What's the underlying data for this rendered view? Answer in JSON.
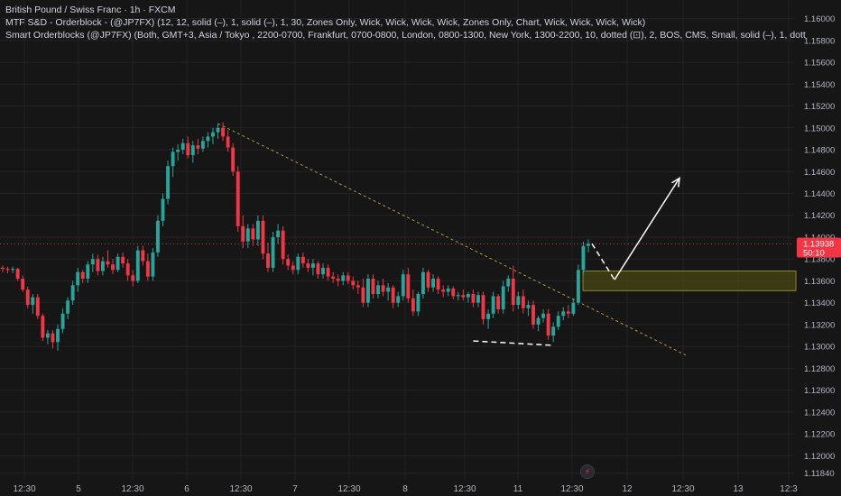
{
  "header": {
    "title": "British Pound / Swiss Franc · 1h · FXCM",
    "indicator_1": "MTF S&D - Orderblock - (@JP7FX) (12, 12, solid (–), 1, solid (–), 1, 30, Zones Only, Wick, Wick, Wick, Wick, Zones Only, Chart, Wick, Wick, Wick, Wick)",
    "indicator_2": "Smart Orderblocks (@JP7FX) (Both, GMT+3, Asia / Tokyo , 2200-0700, Frankfurt, 0700-0800, London, 0800-1300, New York, 1300-2200, 10, dotted (⊡), 2, BOS, CMS, Small, solid (–), 1, dott"
  },
  "price_label": {
    "value": "1.13938",
    "countdown": "50:10"
  },
  "alert_icon": "bolt-icon",
  "colors": {
    "background": "#161616",
    "up": "#26a69a",
    "down": "#f23645",
    "grid": "#232323",
    "text": "#b2b5be",
    "zone_fill": "#4a4a14",
    "zone_stroke": "#8a8a2a",
    "trendline": "#a89a40",
    "annotation": "#ffffff"
  },
  "chart_data": {
    "type": "candlestick",
    "title": "British Pound / Swiss Franc · 1h · FXCM",
    "y_axis": {
      "min": 1.1178,
      "max": 1.1617,
      "ticks": [
        "1.16000",
        "1.15800",
        "1.15600",
        "1.15400",
        "1.15200",
        "1.15000",
        "1.14800",
        "1.14600",
        "1.14400",
        "1.14200",
        "1.14000",
        "1.13800",
        "1.13600",
        "1.13400",
        "1.13200",
        "1.13000",
        "1.12800",
        "1.12600",
        "1.12400",
        "1.12200",
        "1.12000",
        "1.11840"
      ],
      "position": "right"
    },
    "x_axis": {
      "ticks": [
        "12:30",
        "5",
        "12:30",
        "6",
        "12:30",
        "7",
        "12:30",
        "8",
        "12:30",
        "11",
        "12:30",
        "12",
        "12:30",
        "13",
        "12:3"
      ]
    },
    "grid": true,
    "last_price": 1.13938,
    "candles": [
      [
        1.1372,
        1.1374,
        1.1368,
        1.1371
      ],
      [
        1.1371,
        1.1373,
        1.1367,
        1.137
      ],
      [
        1.137,
        1.1373,
        1.1367,
        1.1371
      ],
      [
        1.1371,
        1.1372,
        1.136,
        1.1362
      ],
      [
        1.1362,
        1.1365,
        1.135,
        1.1352
      ],
      [
        1.1352,
        1.1355,
        1.1335,
        1.1338
      ],
      [
        1.1338,
        1.1348,
        1.133,
        1.1345
      ],
      [
        1.1345,
        1.1348,
        1.1325,
        1.1328
      ],
      [
        1.1328,
        1.133,
        1.1305,
        1.1308
      ],
      [
        1.1308,
        1.1315,
        1.1302,
        1.1312
      ],
      [
        1.1312,
        1.1315,
        1.1298,
        1.1304
      ],
      [
        1.1304,
        1.132,
        1.1296,
        1.1316
      ],
      [
        1.1316,
        1.1335,
        1.1312,
        1.133
      ],
      [
        1.133,
        1.1345,
        1.1325,
        1.1342
      ],
      [
        1.1342,
        1.136,
        1.1338,
        1.1356
      ],
      [
        1.1356,
        1.1372,
        1.135,
        1.1368
      ],
      [
        1.1368,
        1.137,
        1.1358,
        1.1362
      ],
      [
        1.1362,
        1.1378,
        1.1358,
        1.1375
      ],
      [
        1.1375,
        1.1385,
        1.1368,
        1.138
      ],
      [
        1.138,
        1.1384,
        1.1365,
        1.1369
      ],
      [
        1.1369,
        1.1382,
        1.1365,
        1.1378
      ],
      [
        1.1378,
        1.1388,
        1.1372,
        1.1375
      ],
      [
        1.1375,
        1.138,
        1.1366,
        1.137
      ],
      [
        1.137,
        1.1385,
        1.1368,
        1.1382
      ],
      [
        1.1382,
        1.1386,
        1.1372,
        1.1376
      ],
      [
        1.1376,
        1.138,
        1.136,
        1.1365
      ],
      [
        1.1365,
        1.137,
        1.1355,
        1.136
      ],
      [
        1.136,
        1.1392,
        1.1358,
        1.1388
      ],
      [
        1.1388,
        1.1392,
        1.1374,
        1.1378
      ],
      [
        1.1378,
        1.1385,
        1.136,
        1.1364
      ],
      [
        1.1364,
        1.139,
        1.136,
        1.1386
      ],
      [
        1.1386,
        1.142,
        1.1382,
        1.1415
      ],
      [
        1.1415,
        1.144,
        1.141,
        1.1435
      ],
      [
        1.1435,
        1.147,
        1.143,
        1.1465
      ],
      [
        1.1465,
        1.1482,
        1.1455,
        1.1478
      ],
      [
        1.1478,
        1.1485,
        1.147,
        1.148
      ],
      [
        1.148,
        1.149,
        1.1476,
        1.1486
      ],
      [
        1.1486,
        1.1492,
        1.1472,
        1.1475
      ],
      [
        1.1475,
        1.1488,
        1.1468,
        1.1484
      ],
      [
        1.1484,
        1.149,
        1.1476,
        1.1481
      ],
      [
        1.1481,
        1.1492,
        1.1478,
        1.1488
      ],
      [
        1.1488,
        1.1496,
        1.1482,
        1.1492
      ],
      [
        1.1492,
        1.15,
        1.1485,
        1.1496
      ],
      [
        1.1496,
        1.1504,
        1.149,
        1.15
      ],
      [
        1.15,
        1.1505,
        1.1488,
        1.1492
      ],
      [
        1.1492,
        1.1498,
        1.1478,
        1.1482
      ],
      [
        1.1482,
        1.1486,
        1.1456,
        1.146
      ],
      [
        1.146,
        1.1465,
        1.1405,
        1.141
      ],
      [
        1.141,
        1.142,
        1.139,
        1.1396
      ],
      [
        1.1396,
        1.1412,
        1.139,
        1.1408
      ],
      [
        1.1408,
        1.1412,
        1.1392,
        1.1398
      ],
      [
        1.1398,
        1.142,
        1.1392,
        1.1415
      ],
      [
        1.1415,
        1.142,
        1.138,
        1.1385
      ],
      [
        1.1385,
        1.1395,
        1.1368,
        1.1372
      ],
      [
        1.1372,
        1.1405,
        1.1368,
        1.14
      ],
      [
        1.14,
        1.1412,
        1.1394,
        1.1406
      ],
      [
        1.1406,
        1.141,
        1.1375,
        1.138
      ],
      [
        1.138,
        1.1384,
        1.137,
        1.1374
      ],
      [
        1.1374,
        1.1378,
        1.1366,
        1.137
      ],
      [
        1.137,
        1.1385,
        1.1366,
        1.1382
      ],
      [
        1.1382,
        1.1386,
        1.1372,
        1.1376
      ],
      [
        1.1376,
        1.138,
        1.1368,
        1.1372
      ],
      [
        1.1372,
        1.138,
        1.1365,
        1.1376
      ],
      [
        1.1376,
        1.1378,
        1.1362,
        1.1366
      ],
      [
        1.1366,
        1.1376,
        1.1362,
        1.1372
      ],
      [
        1.1372,
        1.1375,
        1.136,
        1.1364
      ],
      [
        1.1364,
        1.1368,
        1.1358,
        1.1362
      ],
      [
        1.1362,
        1.1366,
        1.1355,
        1.136
      ],
      [
        1.136,
        1.1368,
        1.1356,
        1.1365
      ],
      [
        1.1365,
        1.1368,
        1.1357,
        1.136
      ],
      [
        1.136,
        1.1364,
        1.1352,
        1.1356
      ],
      [
        1.1356,
        1.136,
        1.1348,
        1.1354
      ],
      [
        1.1354,
        1.1362,
        1.1336,
        1.134
      ],
      [
        1.134,
        1.1366,
        1.1336,
        1.1362
      ],
      [
        1.1362,
        1.1366,
        1.1344,
        1.1348
      ],
      [
        1.1348,
        1.136,
        1.1344,
        1.1356
      ],
      [
        1.1356,
        1.1362,
        1.1346,
        1.135
      ],
      [
        1.135,
        1.1358,
        1.1342,
        1.1354
      ],
      [
        1.1354,
        1.1356,
        1.1335,
        1.134
      ],
      [
        1.134,
        1.135,
        1.1336,
        1.1346
      ],
      [
        1.1346,
        1.137,
        1.1342,
        1.1366
      ],
      [
        1.1366,
        1.1372,
        1.134,
        1.1344
      ],
      [
        1.1344,
        1.1352,
        1.1328,
        1.1332
      ],
      [
        1.1332,
        1.135,
        1.1328,
        1.1348
      ],
      [
        1.1348,
        1.1372,
        1.1344,
        1.1368
      ],
      [
        1.1368,
        1.137,
        1.135,
        1.1354
      ],
      [
        1.1354,
        1.1366,
        1.135,
        1.1362
      ],
      [
        1.1362,
        1.1364,
        1.1348,
        1.1352
      ],
      [
        1.1352,
        1.1356,
        1.1345,
        1.135
      ],
      [
        1.135,
        1.1356,
        1.1346,
        1.1353
      ],
      [
        1.1353,
        1.1355,
        1.1343,
        1.1346
      ],
      [
        1.1346,
        1.135,
        1.1342,
        1.1347
      ],
      [
        1.1347,
        1.1352,
        1.1342,
        1.1345
      ],
      [
        1.1345,
        1.135,
        1.134,
        1.1348
      ],
      [
        1.1348,
        1.1352,
        1.1336,
        1.134
      ],
      [
        1.134,
        1.135,
        1.1336,
        1.1347
      ],
      [
        1.1347,
        1.135,
        1.132,
        1.1325
      ],
      [
        1.1325,
        1.1334,
        1.1316,
        1.133
      ],
      [
        1.133,
        1.135,
        1.1326,
        1.1346
      ],
      [
        1.1346,
        1.1348,
        1.133,
        1.1334
      ],
      [
        1.1334,
        1.136,
        1.133,
        1.1355
      ],
      [
        1.1355,
        1.1365,
        1.135,
        1.1362
      ],
      [
        1.1362,
        1.1374,
        1.1332,
        1.1338
      ],
      [
        1.1338,
        1.135,
        1.1334,
        1.1346
      ],
      [
        1.1346,
        1.1352,
        1.133,
        1.1335
      ],
      [
        1.1335,
        1.1342,
        1.1328,
        1.1338
      ],
      [
        1.1338,
        1.1342,
        1.1316,
        1.132
      ],
      [
        1.132,
        1.1328,
        1.1314,
        1.1326
      ],
      [
        1.1326,
        1.1334,
        1.1322,
        1.133
      ],
      [
        1.133,
        1.1334,
        1.1306,
        1.131
      ],
      [
        1.131,
        1.1322,
        1.1304,
        1.1318
      ],
      [
        1.1318,
        1.1332,
        1.1315,
        1.1328
      ],
      [
        1.1328,
        1.1336,
        1.1324,
        1.1332
      ],
      [
        1.1332,
        1.1338,
        1.1326,
        1.133
      ],
      [
        1.133,
        1.1344,
        1.1328,
        1.134
      ],
      [
        1.134,
        1.1375,
        1.1338,
        1.137
      ],
      [
        1.137,
        1.1396,
        1.1366,
        1.1392
      ],
      [
        1.1392,
        1.1398,
        1.1386,
        1.1394
      ]
    ]
  }
}
